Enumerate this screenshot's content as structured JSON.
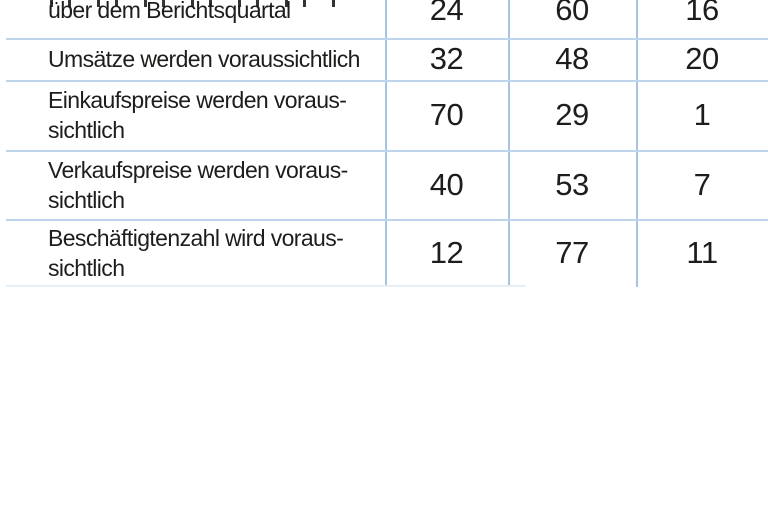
{
  "table": {
    "rows": [
      {
        "lines": [
          "über dem Berichtsquartal"
        ],
        "values": [
          24,
          60,
          16
        ],
        "top_line_clipped": true
      },
      {
        "lines": [
          "Umsätze werden voraussichtlich"
        ],
        "values": [
          32,
          48,
          20
        ]
      },
      {
        "lines": [
          "Einkaufspreise werden voraus-",
          "sichtlich"
        ],
        "values": [
          70,
          29,
          1
        ]
      },
      {
        "lines": [
          "Verkaufspreise werden voraus-",
          "sichtlich"
        ],
        "values": [
          40,
          53,
          7
        ]
      },
      {
        "lines": [
          "Beschäftigtenzahl wird voraus-",
          "sichtlich"
        ],
        "values": [
          12,
          77,
          11
        ]
      }
    ],
    "colors": {
      "horizontal_rule": "#bdd4eb",
      "vertical_rule": "#a6c4e1",
      "text": "#1d1d1b",
      "background": "#ffffff"
    }
  },
  "chart_data": {
    "type": "table",
    "title": "",
    "rows": [
      {
        "label": "über dem Berichtsquartal",
        "values": [
          24,
          60,
          16
        ]
      },
      {
        "label": "Umsätze werden voraussichtlich",
        "values": [
          32,
          48,
          20
        ]
      },
      {
        "label": "Einkaufspreise werden voraussichtlich",
        "values": [
          70,
          29,
          1
        ]
      },
      {
        "label": "Verkaufspreise werden voraussichtlich",
        "values": [
          40,
          53,
          7
        ]
      },
      {
        "label": "Beschäftigtenzahl wird voraussichtlich",
        "values": [
          12,
          77,
          11
        ]
      }
    ]
  }
}
